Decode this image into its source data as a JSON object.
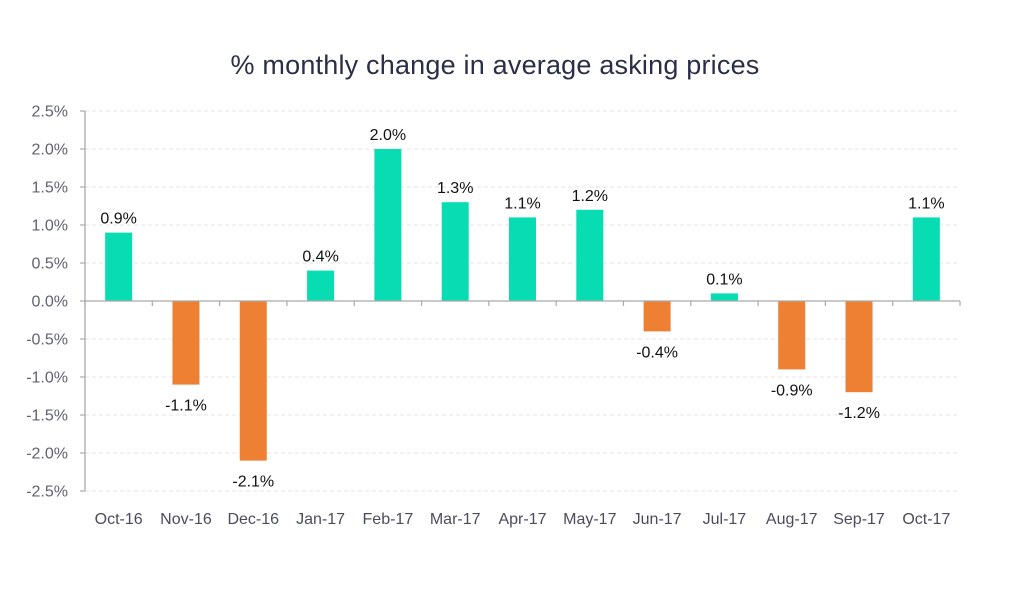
{
  "chart_data": {
    "type": "bar",
    "title": "% monthly change in average asking prices",
    "xlabel": "",
    "ylabel": "",
    "categories": [
      "Oct-16",
      "Nov-16",
      "Dec-16",
      "Jan-17",
      "Feb-17",
      "Mar-17",
      "Apr-17",
      "May-17",
      "Jun-17",
      "Jul-17",
      "Aug-17",
      "Sep-17",
      "Oct-17"
    ],
    "values": [
      0.9,
      -1.1,
      -2.1,
      0.4,
      2.0,
      1.3,
      1.1,
      1.2,
      -0.4,
      0.1,
      -0.9,
      -1.2,
      1.1
    ],
    "data_labels": [
      "0.9%",
      "-1.1%",
      "-2.1%",
      "0.4%",
      "2.0%",
      "1.3%",
      "1.1%",
      "1.2%",
      "-0.4%",
      "0.1%",
      "-0.9%",
      "-1.2%",
      "1.1%"
    ],
    "ylim": [
      -2.5,
      2.5
    ],
    "yticks": [
      2.5,
      2.0,
      1.5,
      1.0,
      0.5,
      0.0,
      -0.5,
      -1.0,
      -1.5,
      -2.0,
      -2.5
    ],
    "ytick_labels": [
      "2.5%",
      "2.0%",
      "1.5%",
      "1.0%",
      "0.5%",
      "0.0%",
      "-0.5%",
      "-1.0%",
      "-1.5%",
      "-2.0%",
      "-2.5%"
    ],
    "grid": true,
    "legend": "none",
    "colors": {
      "positive": "#08dcb3",
      "negative": "#ee8034",
      "axis": "#a9a9a9",
      "grid": "#e3e3e3"
    }
  }
}
